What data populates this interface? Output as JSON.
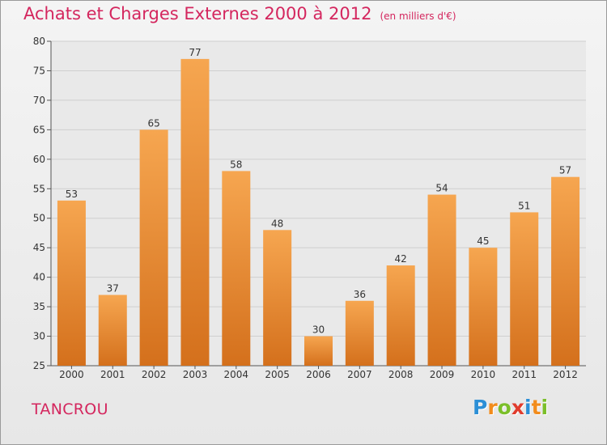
{
  "title": "Achats et Charges Externes 2000 à 2012",
  "subtitle": "(en milliers d'€)",
  "place": "TANCROU",
  "logo": {
    "letters": [
      "P",
      "r",
      "o",
      "x",
      "i",
      "t",
      "i"
    ],
    "colors": [
      "#2c8fd6",
      "#f28c1c",
      "#7bbf2a",
      "#e03c2d",
      "#2c8fd6",
      "#f28c1c",
      "#7bbf2a"
    ]
  },
  "colors": {
    "title": "#d4265e",
    "bar_light": "#f6a650",
    "bar_dark": "#d4701c"
  },
  "chart_data": {
    "type": "bar",
    "title": "Achats et Charges Externes 2000 à 2012",
    "subtitle": "(en milliers d'€)",
    "xlabel": "",
    "ylabel": "",
    "categories": [
      "2000",
      "2001",
      "2002",
      "2003",
      "2004",
      "2005",
      "2006",
      "2007",
      "2008",
      "2009",
      "2010",
      "2011",
      "2012"
    ],
    "values": [
      53,
      37,
      65,
      77,
      58,
      48,
      30,
      36,
      42,
      54,
      45,
      51,
      57
    ],
    "ylim": [
      25,
      80
    ],
    "yticks": [
      25,
      30,
      35,
      40,
      45,
      50,
      55,
      60,
      65,
      70,
      75,
      80
    ],
    "grid": true,
    "legend": "none"
  }
}
